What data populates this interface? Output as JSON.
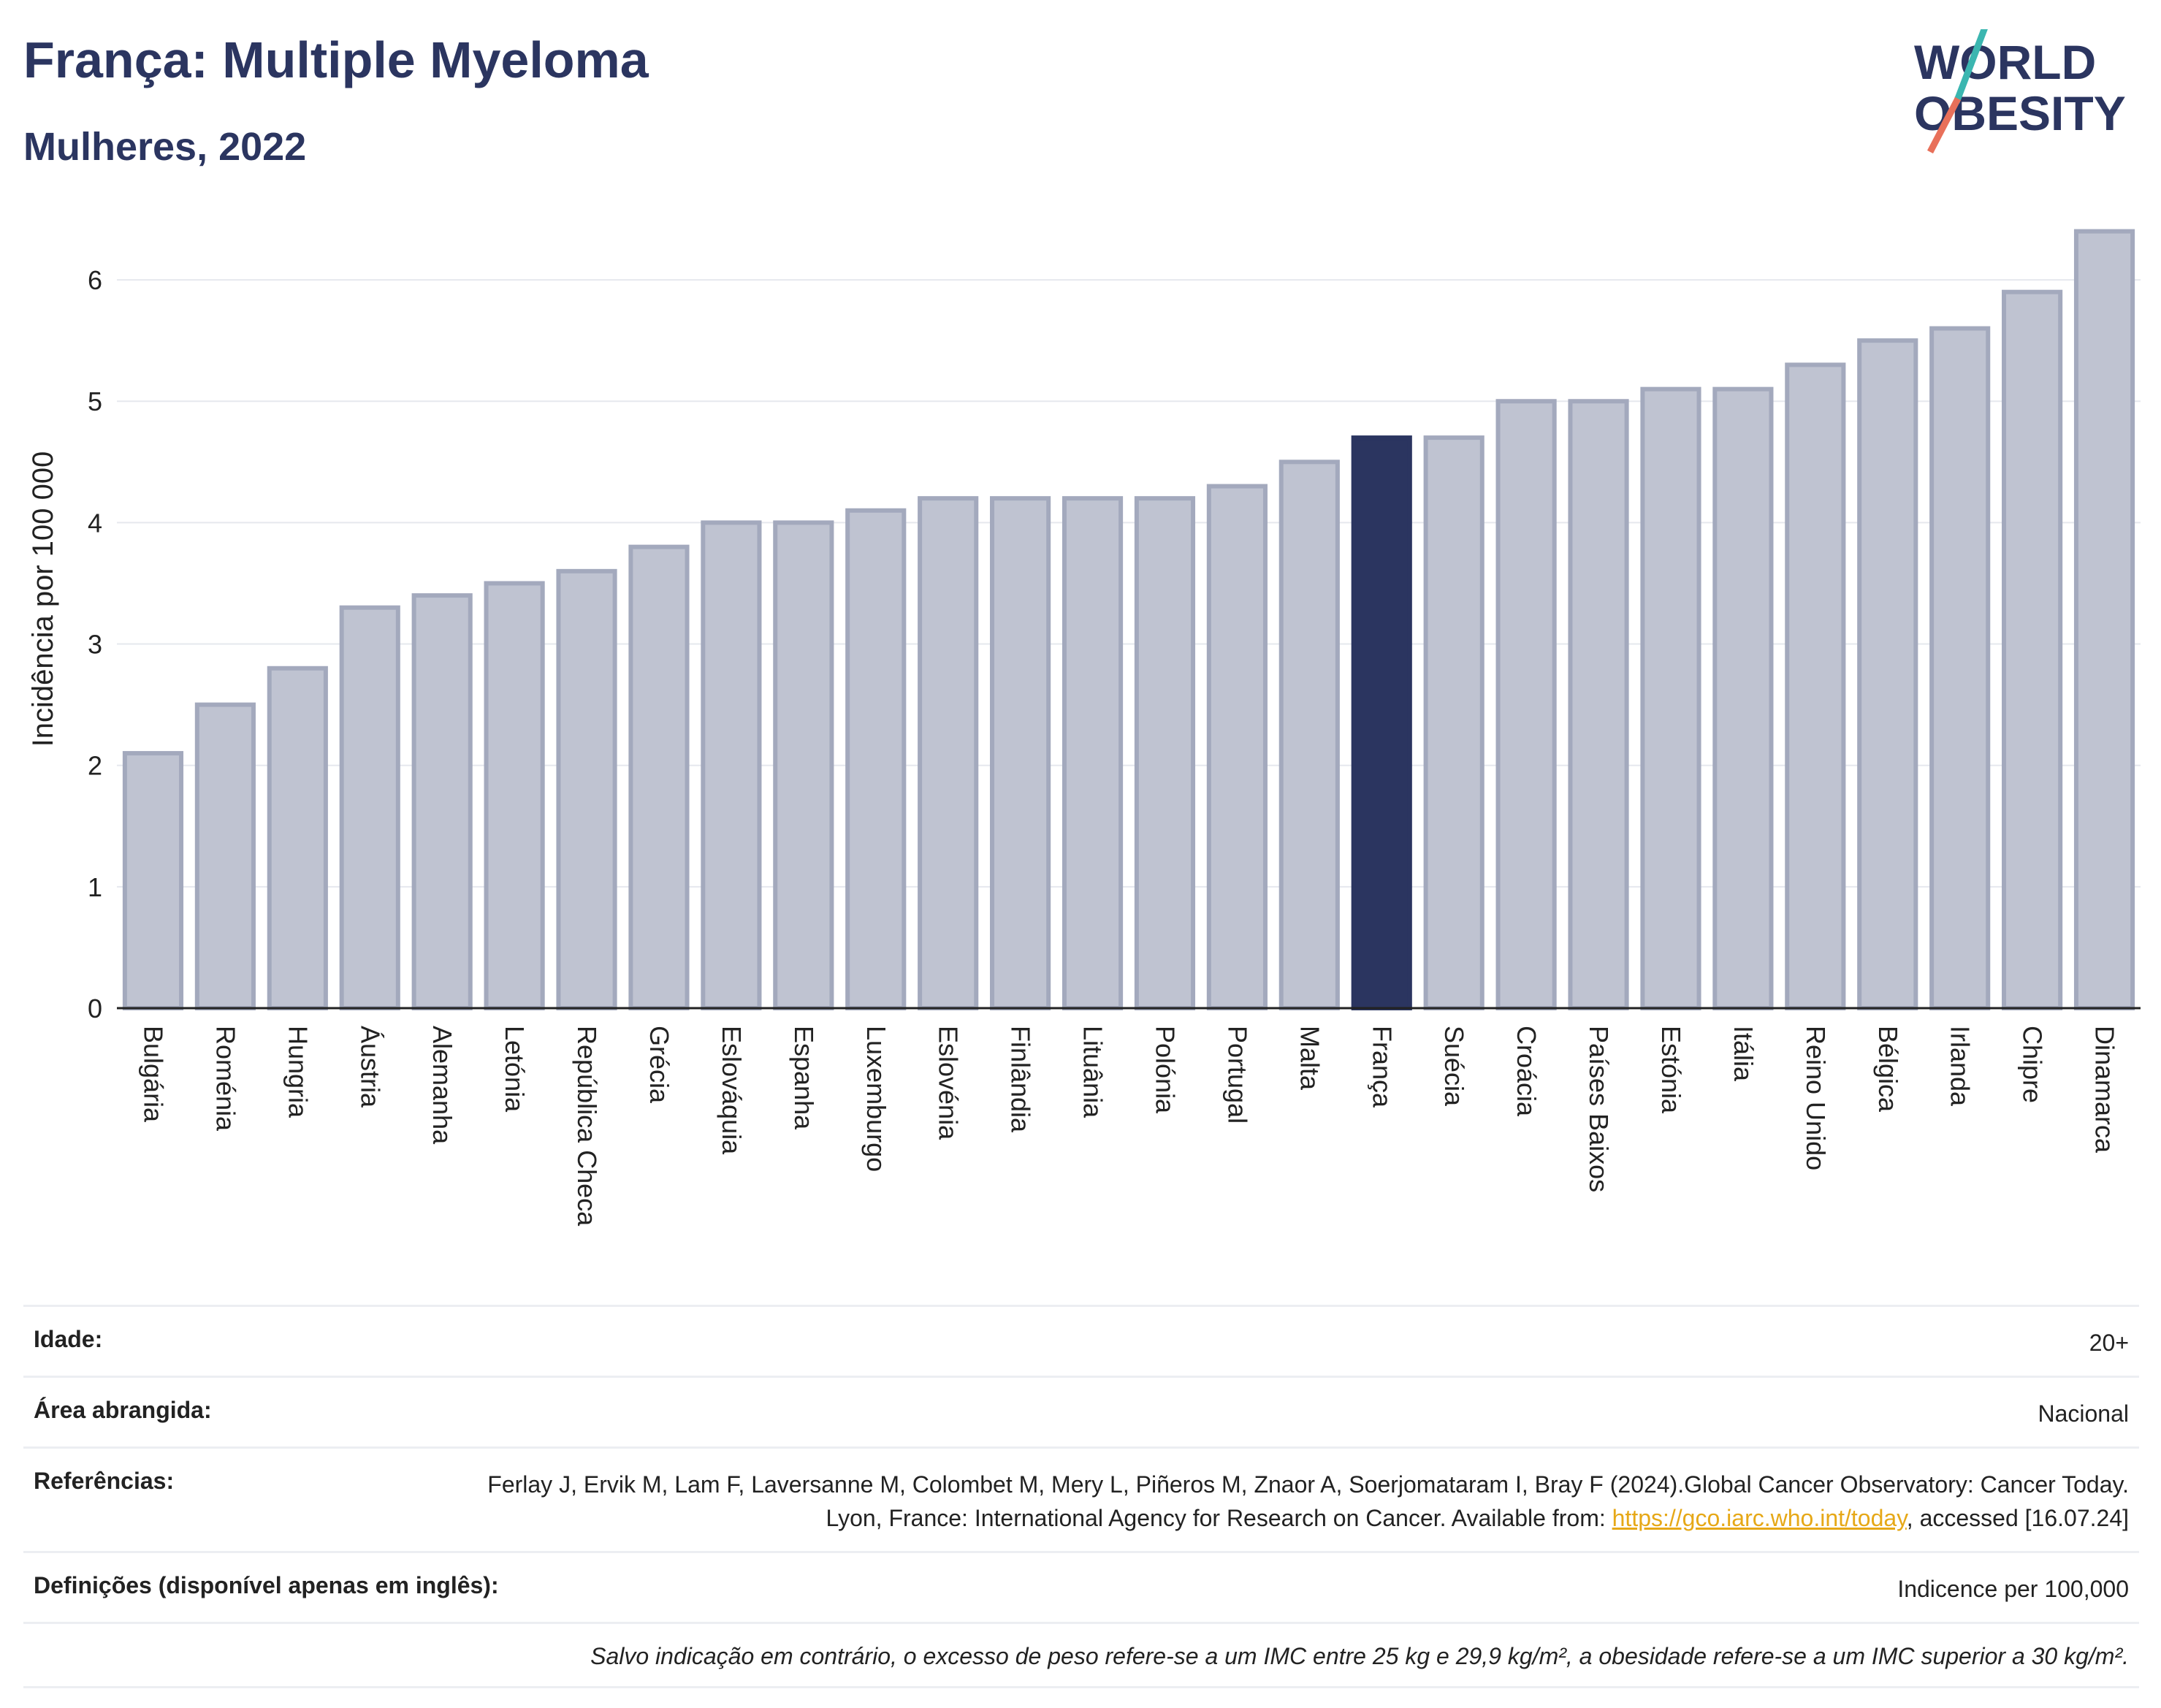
{
  "header": {
    "title": "França: Multiple Myeloma",
    "subtitle": "Mulheres, 2022",
    "logo_line1": "WORLD",
    "logo_line2": "OBESITY"
  },
  "colors": {
    "highlight": "#2b3560",
    "bar_fill": "#bfc3d1",
    "bar_stroke": "#a3a9bd",
    "title": "#2b3560",
    "logo_slash_top": "#3bb6b0",
    "logo_slash_bottom": "#e8705a",
    "link": "#e6a817"
  },
  "chart_data": {
    "type": "bar",
    "ylabel": "Incidência por 100 000",
    "xlabel": "",
    "ylim": [
      0,
      6.5
    ],
    "yticks": [
      0,
      1,
      2,
      3,
      4,
      5,
      6
    ],
    "grid": true,
    "highlight_category": "França",
    "categories": [
      "Bulgária",
      "Roménia",
      "Hungria",
      "Áustria",
      "Alemanha",
      "Letónia",
      "República Checa",
      "Grécia",
      "Eslováquia",
      "Espanha",
      "Luxemburgo",
      "Eslovénia",
      "Finlândia",
      "Lituânia",
      "Polónia",
      "Portugal",
      "Malta",
      "França",
      "Suécia",
      "Croácia",
      "Países Baixos",
      "Estónia",
      "Itália",
      "Reino Unido",
      "Bélgica",
      "Irlanda",
      "Chipre",
      "Dinamarca"
    ],
    "values": [
      2.1,
      2.5,
      2.8,
      3.3,
      3.4,
      3.5,
      3.6,
      3.8,
      4.0,
      4.0,
      4.1,
      4.2,
      4.2,
      4.2,
      4.2,
      4.3,
      4.5,
      4.7,
      4.7,
      5.0,
      5.0,
      5.1,
      5.1,
      5.3,
      5.5,
      5.6,
      5.9,
      6.4
    ]
  },
  "info": {
    "age_label": "Idade:",
    "age_value": "20+",
    "area_label": "Área abrangida:",
    "area_value": "Nacional",
    "ref_label": "Referências:",
    "ref_text_before": "Ferlay J, Ervik M, Lam F, Laversanne M, Colombet M, Mery L, Piñeros M, Znaor A, Soerjomataram I, Bray F (2024).Global Cancer Observatory: Cancer Today. Lyon, France: International Agency for Research on Cancer. Available from: ",
    "ref_link": "https://gco.iarc.who.int/today",
    "ref_text_after": ", accessed [16.07.24]",
    "def_label": "Definições (disponível apenas em inglês):",
    "def_value": "Indicence per 100,000",
    "footnote": "Salvo indicação em contrário, o excesso de peso refere-se a um IMC entre 25 kg e 29,9 kg/m², a obesidade refere-se a um IMC superior a 30 kg/m²."
  }
}
